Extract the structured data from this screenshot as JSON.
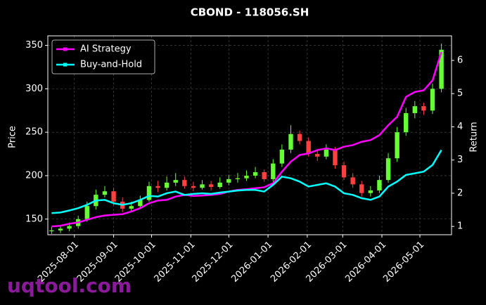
{
  "chart_data": {
    "type": "candlestick",
    "title": "CBOND - 118056.SH",
    "ylabel": "Price",
    "y2label": "Return",
    "watermark": "uqtool.com",
    "legend": "upper left",
    "grid": true,
    "up_color": "#66ff33",
    "down_color": "#ff4040",
    "xlim": [
      "2025-07-11",
      "2026-05-26"
    ],
    "xticks": [
      "2025-08-01",
      "2025-09-01",
      "2025-10-01",
      "2025-11-01",
      "2025-12-01",
      "2026-01-01",
      "2026-02-01",
      "2026-03-01",
      "2026-04-01",
      "2026-05-01"
    ],
    "ylim": [
      132,
      361
    ],
    "yticks": [
      150,
      200,
      250,
      300,
      350
    ],
    "y2lim": [
      0.75,
      6.74
    ],
    "y2ticks": [
      1,
      2,
      3,
      4,
      5,
      6
    ],
    "x": [
      "2025-07-14",
      "2025-07-21",
      "2025-07-28",
      "2025-08-04",
      "2025-08-11",
      "2025-08-18",
      "2025-08-25",
      "2025-09-01",
      "2025-09-08",
      "2025-09-15",
      "2025-09-22",
      "2025-09-29",
      "2025-10-06",
      "2025-10-13",
      "2025-10-20",
      "2025-10-27",
      "2025-11-03",
      "2025-11-10",
      "2025-11-17",
      "2025-11-24",
      "2025-12-01",
      "2025-12-08",
      "2025-12-15",
      "2025-12-22",
      "2025-12-29",
      "2026-01-05",
      "2026-01-12",
      "2026-01-19",
      "2026-01-26",
      "2026-02-02",
      "2026-02-09",
      "2026-02-16",
      "2026-02-23",
      "2026-03-02",
      "2026-03-09",
      "2026-03-16",
      "2026-03-23",
      "2026-03-30",
      "2026-04-06",
      "2026-04-13",
      "2026-04-20",
      "2026-04-27",
      "2026-05-04",
      "2026-05-11",
      "2026-05-18"
    ],
    "open": [
      136,
      137,
      139,
      142,
      150,
      165,
      178,
      182,
      170,
      162,
      165,
      172,
      188,
      186,
      192,
      195,
      188,
      186,
      190,
      187,
      192,
      196,
      197,
      200,
      204,
      196,
      214,
      230,
      248,
      240,
      225,
      222,
      230,
      212,
      198,
      190,
      180,
      183,
      195,
      220,
      250,
      272,
      280,
      275,
      300
    ],
    "high": [
      141,
      143,
      146,
      154,
      170,
      184,
      188,
      186,
      175,
      170,
      177,
      193,
      194,
      199,
      203,
      199,
      193,
      195,
      194,
      198,
      201,
      203,
      206,
      210,
      207,
      219,
      236,
      258,
      252,
      244,
      230,
      236,
      233,
      216,
      203,
      194,
      188,
      200,
      226,
      256,
      278,
      286,
      284,
      306,
      352
    ],
    "low": [
      133,
      134,
      136,
      139,
      147,
      161,
      175,
      166,
      158,
      159,
      162,
      170,
      181,
      183,
      188,
      185,
      182,
      184,
      183,
      185,
      189,
      192,
      194,
      197,
      193,
      193,
      210,
      226,
      236,
      222,
      217,
      219,
      208,
      195,
      186,
      176,
      176,
      180,
      192,
      216,
      246,
      266,
      270,
      271,
      296
    ],
    "close": [
      137,
      139,
      142,
      150,
      165,
      178,
      182,
      170,
      162,
      165,
      172,
      188,
      186,
      192,
      195,
      188,
      186,
      190,
      187,
      192,
      196,
      197,
      200,
      204,
      196,
      214,
      230,
      248,
      240,
      225,
      222,
      230,
      212,
      198,
      190,
      180,
      183,
      195,
      220,
      250,
      272,
      280,
      275,
      300,
      345
    ],
    "series": [
      {
        "name": "AI Strategy",
        "color": "#ff00ff",
        "axis": "y2",
        "values": [
          1.0,
          1.02,
          1.08,
          1.12,
          1.2,
          1.28,
          1.33,
          1.35,
          1.37,
          1.45,
          1.55,
          1.7,
          1.78,
          1.8,
          1.9,
          1.95,
          1.92,
          1.93,
          1.95,
          1.98,
          2.05,
          2.1,
          2.12,
          2.15,
          2.18,
          2.3,
          2.65,
          2.95,
          3.15,
          3.2,
          3.3,
          3.35,
          3.3,
          3.4,
          3.45,
          3.55,
          3.6,
          3.75,
          4.05,
          4.3,
          4.9,
          5.05,
          5.1,
          5.4,
          6.25
        ]
      },
      {
        "name": "Buy-and-Hold",
        "color": "#00ffff",
        "axis": "y2",
        "values": [
          1.4,
          1.42,
          1.48,
          1.55,
          1.65,
          1.78,
          1.8,
          1.7,
          1.65,
          1.7,
          1.8,
          1.92,
          1.9,
          2.0,
          2.05,
          1.95,
          1.98,
          2.0,
          1.98,
          2.02,
          2.05,
          2.08,
          2.1,
          2.1,
          2.05,
          2.25,
          2.5,
          2.45,
          2.35,
          2.2,
          2.25,
          2.3,
          2.2,
          2.0,
          1.95,
          1.85,
          1.8,
          1.9,
          2.2,
          2.35,
          2.55,
          2.6,
          2.65,
          2.85,
          3.3
        ]
      }
    ]
  }
}
